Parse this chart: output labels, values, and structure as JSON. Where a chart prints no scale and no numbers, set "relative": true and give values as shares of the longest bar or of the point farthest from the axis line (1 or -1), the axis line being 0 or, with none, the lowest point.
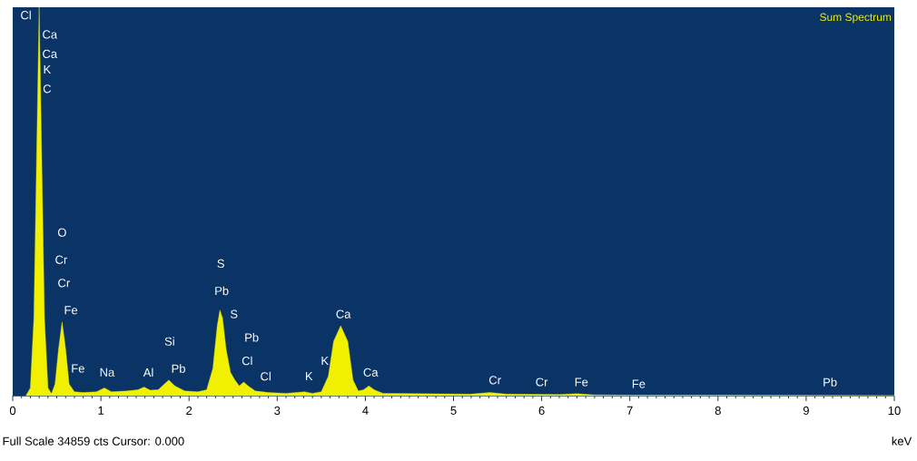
{
  "chart_data": {
    "type": "area",
    "title": "Sum Spectrum",
    "xlabel": "keV",
    "relative": true,
    "color": "#f0f000",
    "x": [
      0.15,
      0.2,
      0.24,
      0.27,
      0.3,
      0.33,
      0.36,
      0.4,
      0.44,
      0.48,
      0.52,
      0.56,
      0.6,
      0.64,
      0.7,
      0.8,
      0.95,
      1.04,
      1.12,
      1.3,
      1.42,
      1.49,
      1.56,
      1.65,
      1.72,
      1.77,
      1.84,
      1.95,
      2.1,
      2.2,
      2.27,
      2.32,
      2.35,
      2.38,
      2.42,
      2.47,
      2.52,
      2.57,
      2.62,
      2.67,
      2.75,
      2.9,
      3.1,
      3.31,
      3.4,
      3.5,
      3.58,
      3.64,
      3.72,
      3.8,
      3.86,
      3.92,
      3.98,
      4.04,
      4.1,
      4.2,
      4.6,
      5.2,
      5.41,
      5.6,
      6.2,
      6.4,
      6.6,
      7,
      8,
      10
    ],
    "values": [
      0,
      0.02,
      0.2,
      0.6,
      1,
      0.6,
      0.2,
      0.02,
      0.005,
      0.03,
      0.12,
      0.19,
      0.12,
      0.03,
      0.01,
      0.008,
      0.01,
      0.02,
      0.01,
      0.012,
      0.015,
      0.022,
      0.014,
      0.015,
      0.03,
      0.04,
      0.025,
      0.012,
      0.01,
      0.015,
      0.07,
      0.18,
      0.22,
      0.2,
      0.12,
      0.06,
      0.04,
      0.025,
      0.035,
      0.025,
      0.012,
      0.008,
      0.006,
      0.01,
      0.006,
      0.01,
      0.05,
      0.14,
      0.18,
      0.14,
      0.04,
      0.012,
      0.015,
      0.025,
      0.015,
      0.006,
      0.005,
      0.004,
      0.008,
      0.004,
      0.003,
      0.005,
      0.002,
      0.001,
      0.001,
      0
    ],
    "xlim": [
      0,
      10
    ],
    "xticks": [
      0,
      1,
      2,
      3,
      4,
      5,
      6,
      7,
      8,
      9,
      10
    ],
    "annotations": [
      "Cl",
      "Ca",
      "Ca",
      "K",
      "C",
      "O",
      "Cr",
      "Cr",
      "Fe",
      "Fe",
      "Na",
      "Al",
      "Si",
      "Pb",
      "S",
      "Pb",
      "S",
      "Pb",
      "Cl",
      "Cl",
      "K",
      "K",
      "Ca",
      "Ca",
      "Cr",
      "Cr",
      "Fe",
      "Fe",
      "Pb",
      "Full Scale 34859 cts Cursor: 0.000"
    ]
  }
}
